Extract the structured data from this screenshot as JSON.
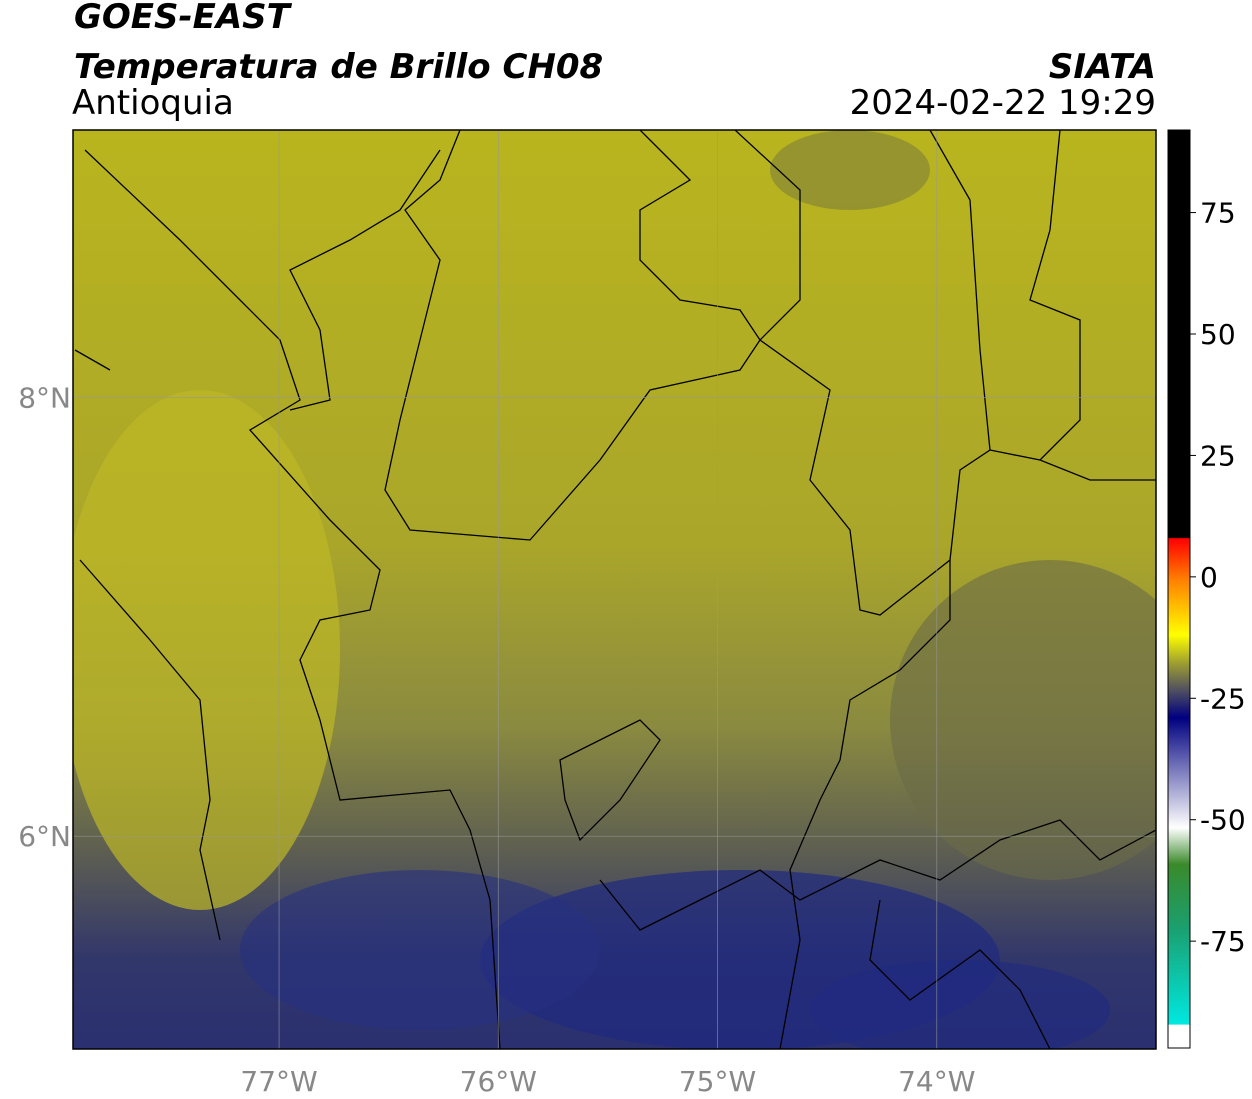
{
  "header": {
    "title": "GOES-EAST",
    "subtitle": "Temperatura de Brillo CH08",
    "region": "Antioquia",
    "source": "SIATA",
    "timestamp": "2024-02-22 19:29"
  },
  "map": {
    "xlim": [
      -77.94,
      -73.0
    ],
    "ylim": [
      5.03,
      9.22
    ],
    "xticks": [
      {
        "value": -77,
        "label": "77°W"
      },
      {
        "value": -76,
        "label": "76°W"
      },
      {
        "value": -75,
        "label": "75°W"
      },
      {
        "value": -74,
        "label": "74°W"
      }
    ],
    "yticks": [
      {
        "value": 8,
        "label": "8°N"
      },
      {
        "value": 6,
        "label": "6°N"
      }
    ],
    "grid": true
  },
  "colorbar": {
    "lim": [
      -97,
      92
    ],
    "ticks": [
      75,
      50,
      25,
      0,
      -25,
      -50,
      -75
    ]
  }
}
